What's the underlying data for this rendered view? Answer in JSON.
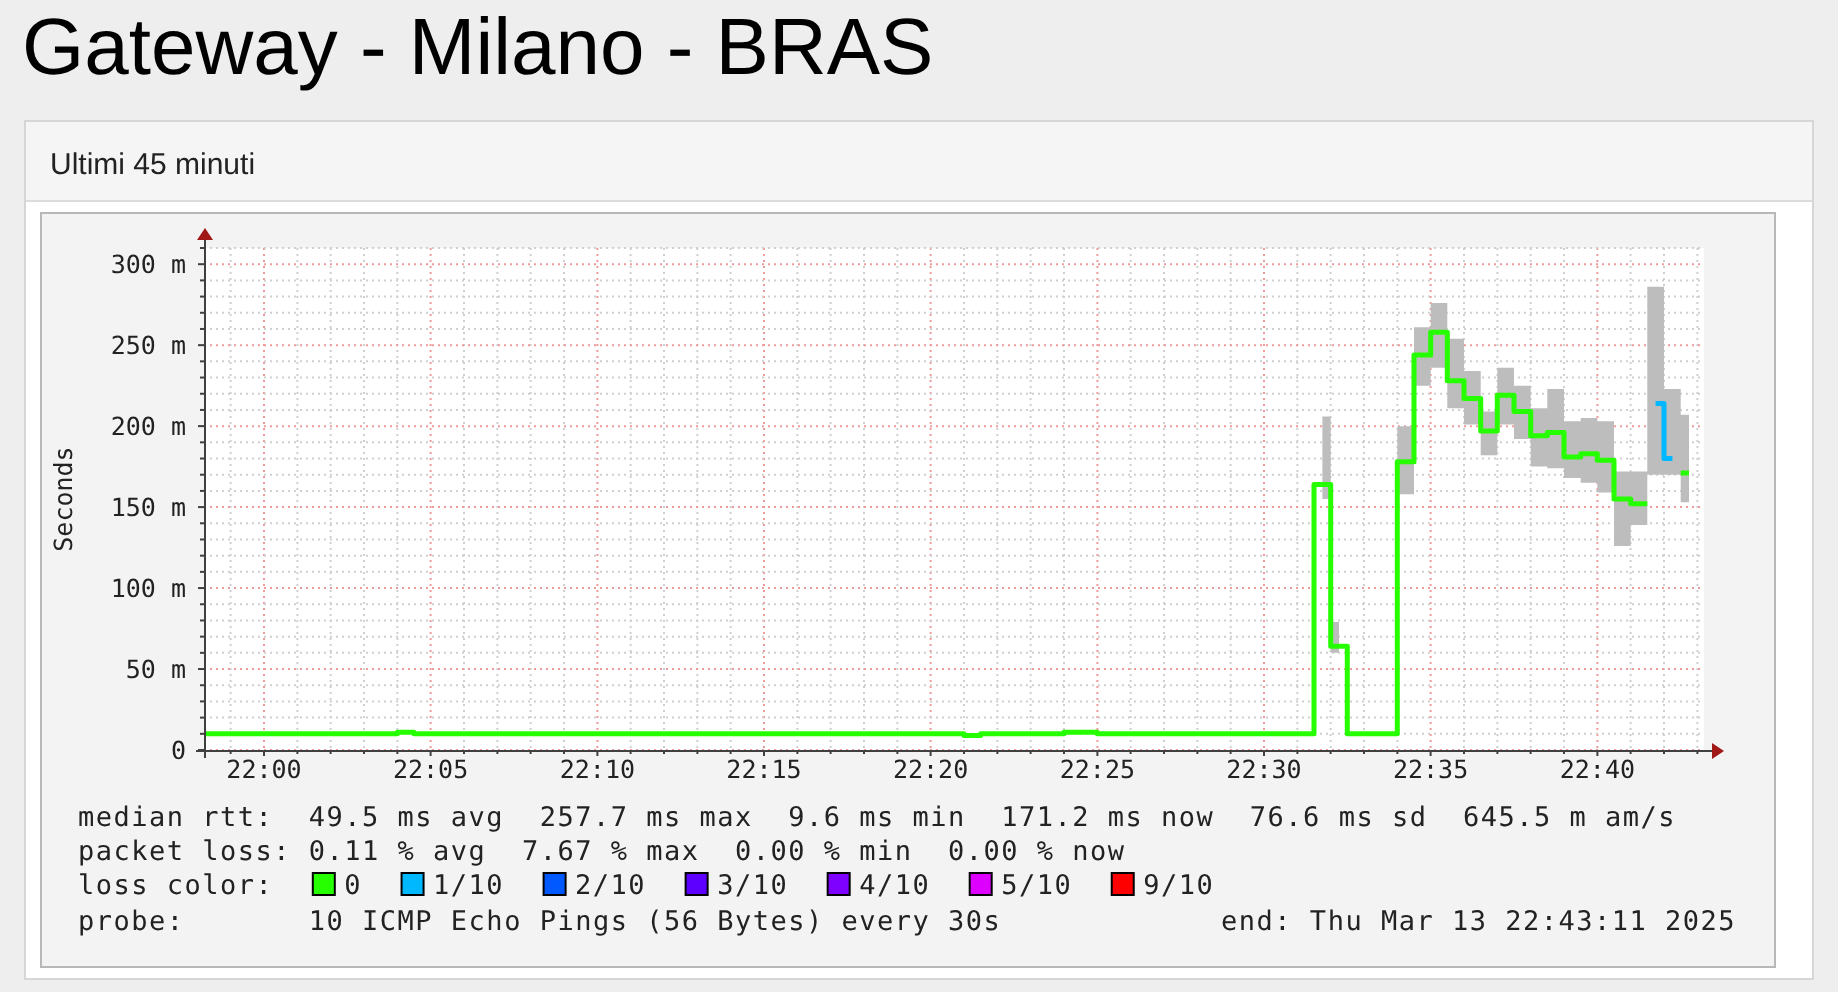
{
  "chart_data": {
    "type": "step",
    "title": "Gateway - Milano - BRAS",
    "subtitle": "Ultimi 45 minuti",
    "ylabel": "Seconds",
    "annotations": [
      "median rtt:  49.5 ms avg  257.7 ms max  9.6 ms min  171.2 ms now  76.6 ms sd  645.5 m am/s",
      "packet loss: 0.11 % avg  7.67 % max  0.00 % min  0.00 % now",
      "probe:       10 ICMP Echo Pings (56 Bytes) every 30s",
      "end: Thu Mar 13 22:43:11 2025"
    ],
    "x": [
      21.9708,
      21.9792,
      21.9875,
      21.9958,
      22.0042,
      22.0125,
      22.0208,
      22.0292,
      22.0375,
      22.0458,
      22.0542,
      22.0625,
      22.0708,
      22.0792,
      22.0875,
      22.0958,
      22.1042,
      22.1125,
      22.1208,
      22.1292,
      22.1375,
      22.1458,
      22.1542,
      22.1625,
      22.1708,
      22.1792,
      22.1875,
      22.1958,
      22.2042,
      22.2125,
      22.2208,
      22.2292,
      22.2375,
      22.2458,
      22.2542,
      22.2625,
      22.2708,
      22.2792,
      22.2875,
      22.2958,
      22.3042,
      22.3125,
      22.3208,
      22.3292,
      22.3375,
      22.3458,
      22.3542,
      22.3625,
      22.3708,
      22.3792,
      22.3875,
      22.3958,
      22.4042,
      22.4125,
      22.4208,
      22.4292,
      22.4375,
      22.4458,
      22.4542,
      22.4625,
      22.4708,
      22.4792,
      22.4875,
      22.4958,
      22.5042,
      22.5125,
      22.5208,
      22.5292,
      22.5375,
      22.5458,
      22.5542,
      22.5625,
      22.5708,
      22.5792,
      22.5875,
      22.5958,
      22.6042,
      22.6125,
      22.6208,
      22.6292,
      22.6375,
      22.6458,
      22.6542,
      22.6625,
      22.6708,
      22.6792,
      22.6875,
      22.6958,
      22.7042,
      22.7125
    ],
    "xlim": [
      21.97,
      22.72
    ],
    "xticks": [
      {
        "value": 21.9833,
        "label": null
      },
      {
        "value": 22,
        "label": "22:00"
      },
      {
        "value": 22.0167,
        "label": null
      },
      {
        "value": 22.0333,
        "label": null
      },
      {
        "value": 22.05,
        "label": null
      },
      {
        "value": 22.0667,
        "label": null
      },
      {
        "value": 22.0833,
        "label": "22:05"
      },
      {
        "value": 22.1,
        "label": null
      },
      {
        "value": 22.1167,
        "label": null
      },
      {
        "value": 22.1333,
        "label": null
      },
      {
        "value": 22.15,
        "label": null
      },
      {
        "value": 22.1667,
        "label": "22:10"
      },
      {
        "value": 22.1833,
        "label": null
      },
      {
        "value": 22.2,
        "label": null
      },
      {
        "value": 22.2167,
        "label": null
      },
      {
        "value": 22.2333,
        "label": null
      },
      {
        "value": 22.25,
        "label": "22:15"
      },
      {
        "value": 22.2667,
        "label": null
      },
      {
        "value": 22.2833,
        "label": null
      },
      {
        "value": 22.3,
        "label": null
      },
      {
        "value": 22.3167,
        "label": null
      },
      {
        "value": 22.3333,
        "label": "22:20"
      },
      {
        "value": 22.35,
        "label": null
      },
      {
        "value": 22.3667,
        "label": null
      },
      {
        "value": 22.3833,
        "label": null
      },
      {
        "value": 22.4,
        "label": null
      },
      {
        "value": 22.4167,
        "label": "22:25"
      },
      {
        "value": 22.4333,
        "label": null
      },
      {
        "value": 22.45,
        "label": null
      },
      {
        "value": 22.4667,
        "label": null
      },
      {
        "value": 22.4833,
        "label": null
      },
      {
        "value": 22.5,
        "label": "22:30"
      },
      {
        "value": 22.5167,
        "label": null
      },
      {
        "value": 22.5333,
        "label": null
      },
      {
        "value": 22.55,
        "label": null
      },
      {
        "value": 22.5667,
        "label": null
      },
      {
        "value": 22.5833,
        "label": "22:35"
      },
      {
        "value": 22.6,
        "label": null
      },
      {
        "value": 22.6167,
        "label": null
      },
      {
        "value": 22.6333,
        "label": null
      },
      {
        "value": 22.65,
        "label": null
      },
      {
        "value": 22.6667,
        "label": "22:40"
      },
      {
        "value": 22.6833,
        "label": null
      },
      {
        "value": 22.7,
        "label": null
      },
      {
        "value": 22.7167,
        "label": null
      }
    ],
    "ylim": [
      0,
      310
    ],
    "yticks": [
      0,
      {
        "value": 10,
        "label": null
      },
      {
        "value": 20,
        "label": null
      },
      {
        "value": 30,
        "label": null
      },
      {
        "value": 40,
        "label": null
      },
      {
        "value": 50,
        "label": "50 m"
      },
      {
        "value": 60,
        "label": null
      },
      {
        "value": 70,
        "label": null
      },
      {
        "value": 80,
        "label": null
      },
      {
        "value": 90,
        "label": null
      },
      {
        "value": 100,
        "label": "100 m"
      },
      {
        "value": 110,
        "label": null
      },
      {
        "value": 120,
        "label": null
      },
      {
        "value": 130,
        "label": null
      },
      {
        "value": 140,
        "label": null
      },
      {
        "value": 150,
        "label": "150 m"
      },
      {
        "value": 160,
        "label": null
      },
      {
        "value": 170,
        "label": null
      },
      {
        "value": 180,
        "label": null
      },
      {
        "value": 190,
        "label": null
      },
      {
        "value": 200,
        "label": "200 m"
      },
      {
        "value": 210,
        "label": null
      },
      {
        "value": 220,
        "label": null
      },
      {
        "value": 230,
        "label": null
      },
      {
        "value": 240,
        "label": null
      },
      {
        "value": 250,
        "label": "250 m"
      },
      {
        "value": 260,
        "label": null
      },
      {
        "value": 270,
        "label": null
      },
      {
        "value": 280,
        "label": null
      },
      {
        "value": 290,
        "label": null
      },
      {
        "value": 300,
        "label": "300 m"
      },
      {
        "value": 310,
        "label": null
      }
    ],
    "grid": true,
    "legend": "bottom",
    "legend_title": "loss color:",
    "series": [
      {
        "name": "0",
        "color": "#26ff00",
        "values": [
          10,
          10,
          10,
          10,
          10,
          10,
          10,
          10,
          10,
          10,
          10,
          10,
          11,
          10,
          10,
          10,
          10,
          10,
          10,
          10,
          10,
          10,
          10,
          10,
          10,
          10,
          10,
          10,
          10,
          10,
          10,
          10,
          10,
          10,
          10,
          10,
          10,
          10,
          10,
          10,
          10,
          10,
          10,
          10,
          10,
          10,
          9,
          10,
          10,
          10,
          10,
          10,
          11,
          11,
          10,
          10,
          10,
          10,
          10,
          10,
          10,
          10,
          10,
          10,
          10,
          10,
          10,
          164,
          64,
          10,
          10,
          10,
          178,
          244,
          258,
          228,
          217,
          197,
          219,
          209,
          194,
          196,
          181,
          183,
          179,
          155,
          152,
          null,
          null,
          171
        ],
        "lower": [
          null,
          null,
          null,
          null,
          null,
          null,
          null,
          null,
          null,
          null,
          null,
          null,
          null,
          null,
          null,
          null,
          null,
          null,
          null,
          null,
          null,
          null,
          null,
          null,
          null,
          null,
          null,
          null,
          null,
          null,
          null,
          null,
          null,
          null,
          null,
          null,
          null,
          null,
          null,
          null,
          null,
          null,
          null,
          null,
          null,
          null,
          null,
          null,
          null,
          null,
          null,
          null,
          null,
          null,
          null,
          null,
          null,
          null,
          null,
          null,
          null,
          null,
          null,
          null,
          null,
          null,
          null,
          155,
          60,
          null,
          null,
          null,
          158,
          225,
          236,
          211,
          201,
          182,
          201,
          192,
          175,
          174,
          168,
          165,
          159,
          126,
          139,
          170,
          170,
          153
        ],
        "upper": [
          null,
          null,
          null,
          null,
          null,
          null,
          null,
          null,
          null,
          null,
          null,
          null,
          null,
          null,
          null,
          null,
          null,
          null,
          null,
          null,
          null,
          null,
          null,
          null,
          null,
          null,
          null,
          null,
          null,
          null,
          null,
          null,
          null,
          null,
          null,
          null,
          null,
          null,
          null,
          null,
          null,
          null,
          null,
          null,
          null,
          null,
          null,
          null,
          null,
          null,
          null,
          null,
          null,
          null,
          null,
          null,
          null,
          null,
          null,
          null,
          null,
          null,
          null,
          null,
          null,
          null,
          null,
          206,
          79,
          null,
          null,
          null,
          200,
          261,
          276,
          254,
          234,
          209,
          236,
          225,
          211,
          223,
          203,
          205,
          203,
          172,
          172,
          286,
          223,
          207
        ]
      },
      {
        "name": "1/10",
        "color": "#00b8ff",
        "values": [
          null,
          null,
          null,
          null,
          null,
          null,
          null,
          null,
          null,
          null,
          null,
          null,
          null,
          null,
          null,
          null,
          null,
          null,
          null,
          null,
          null,
          null,
          null,
          null,
          null,
          null,
          null,
          null,
          null,
          null,
          null,
          null,
          null,
          null,
          null,
          null,
          null,
          null,
          null,
          null,
          null,
          null,
          null,
          null,
          null,
          null,
          null,
          null,
          null,
          null,
          null,
          null,
          null,
          null,
          null,
          null,
          null,
          null,
          null,
          null,
          null,
          null,
          null,
          null,
          null,
          null,
          null,
          null,
          null,
          null,
          null,
          null,
          null,
          null,
          null,
          null,
          null,
          null,
          null,
          null,
          null,
          null,
          null,
          null,
          null,
          null,
          null,
          214,
          180,
          null
        ]
      },
      {
        "name": "2/10",
        "color": "#0059ff",
        "values": [
          null,
          null,
          null,
          null,
          null,
          null,
          null,
          null,
          null,
          null,
          null,
          null,
          null,
          null,
          null,
          null,
          null,
          null,
          null,
          null,
          null,
          null,
          null,
          null,
          null,
          null,
          null,
          null,
          null,
          null,
          null,
          null,
          null,
          null,
          null,
          null,
          null,
          null,
          null,
          null,
          null,
          null,
          null,
          null,
          null,
          null,
          null,
          null,
          null,
          null,
          null,
          null,
          null,
          null,
          null,
          null,
          null,
          null,
          null,
          null,
          null,
          null,
          null,
          null,
          null,
          null,
          null,
          null,
          null,
          null,
          null,
          null,
          null,
          null,
          null,
          null,
          null,
          null,
          null,
          null,
          null,
          null,
          null,
          null,
          null,
          null,
          null,
          null,
          null,
          null
        ]
      },
      {
        "name": "3/10",
        "color": "#5e00ff",
        "values": [
          null,
          null,
          null,
          null,
          null,
          null,
          null,
          null,
          null,
          null,
          null,
          null,
          null,
          null,
          null,
          null,
          null,
          null,
          null,
          null,
          null,
          null,
          null,
          null,
          null,
          null,
          null,
          null,
          null,
          null,
          null,
          null,
          null,
          null,
          null,
          null,
          null,
          null,
          null,
          null,
          null,
          null,
          null,
          null,
          null,
          null,
          null,
          null,
          null,
          null,
          null,
          null,
          null,
          null,
          null,
          null,
          null,
          null,
          null,
          null,
          null,
          null,
          null,
          null,
          null,
          null,
          null,
          null,
          null,
          null,
          null,
          null,
          null,
          null,
          null,
          null,
          null,
          null,
          null,
          null,
          null,
          null,
          null,
          null,
          null,
          null,
          null,
          null,
          null,
          null
        ]
      },
      {
        "name": "4/10",
        "color": "#7e00ff",
        "values": [
          null,
          null,
          null,
          null,
          null,
          null,
          null,
          null,
          null,
          null,
          null,
          null,
          null,
          null,
          null,
          null,
          null,
          null,
          null,
          null,
          null,
          null,
          null,
          null,
          null,
          null,
          null,
          null,
          null,
          null,
          null,
          null,
          null,
          null,
          null,
          null,
          null,
          null,
          null,
          null,
          null,
          null,
          null,
          null,
          null,
          null,
          null,
          null,
          null,
          null,
          null,
          null,
          null,
          null,
          null,
          null,
          null,
          null,
          null,
          null,
          null,
          null,
          null,
          null,
          null,
          null,
          null,
          null,
          null,
          null,
          null,
          null,
          null,
          null,
          null,
          null,
          null,
          null,
          null,
          null,
          null,
          null,
          null,
          null,
          null,
          null,
          null,
          null,
          null,
          null
        ]
      },
      {
        "name": "5/10",
        "color": "#dd00ff",
        "values": [
          null,
          null,
          null,
          null,
          null,
          null,
          null,
          null,
          null,
          null,
          null,
          null,
          null,
          null,
          null,
          null,
          null,
          null,
          null,
          null,
          null,
          null,
          null,
          null,
          null,
          null,
          null,
          null,
          null,
          null,
          null,
          null,
          null,
          null,
          null,
          null,
          null,
          null,
          null,
          null,
          null,
          null,
          null,
          null,
          null,
          null,
          null,
          null,
          null,
          null,
          null,
          null,
          null,
          null,
          null,
          null,
          null,
          null,
          null,
          null,
          null,
          null,
          null,
          null,
          null,
          null,
          null,
          null,
          null,
          null,
          null,
          null,
          null,
          null,
          null,
          null,
          null,
          null,
          null,
          null,
          null,
          null,
          null,
          null,
          null,
          null,
          null,
          null,
          null,
          null
        ]
      },
      {
        "name": "9/10",
        "color": "#ff0000",
        "values": [
          null,
          null,
          null,
          null,
          null,
          null,
          null,
          null,
          null,
          null,
          null,
          null,
          null,
          null,
          null,
          null,
          null,
          null,
          null,
          null,
          null,
          null,
          null,
          null,
          null,
          null,
          null,
          null,
          null,
          null,
          null,
          null,
          null,
          null,
          null,
          null,
          null,
          null,
          null,
          null,
          null,
          null,
          null,
          null,
          null,
          null,
          null,
          null,
          null,
          null,
          null,
          null,
          null,
          null,
          null,
          null,
          null,
          null,
          null,
          null,
          null,
          null,
          null,
          null,
          null,
          null,
          null,
          null,
          null,
          null,
          null,
          null,
          null,
          null,
          null,
          null,
          null,
          null,
          null,
          null,
          null,
          null,
          null,
          null,
          null,
          null,
          null,
          null,
          null,
          null
        ]
      }
    ]
  }
}
